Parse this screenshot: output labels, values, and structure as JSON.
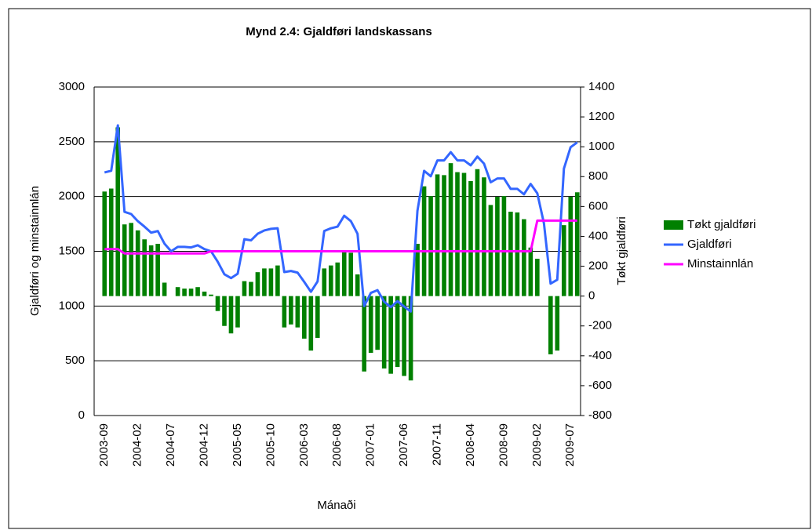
{
  "chart_data": {
    "type": "bar",
    "title": "Mynd 2.4: Gjaldføri landskassans",
    "x_label": "Mánaði",
    "y_label": "Gjaldføri og minstainnlán",
    "y2_label": "Tøkt gjaldføri",
    "categories": [
      "2003-09",
      null,
      null,
      null,
      null,
      "2004-02",
      null,
      null,
      null,
      null,
      "2004-07",
      null,
      null,
      null,
      null,
      "2004-12",
      null,
      null,
      null,
      null,
      "2005-05",
      null,
      null,
      null,
      null,
      "2005-10",
      null,
      null,
      null,
      null,
      "2006-03",
      null,
      null,
      null,
      null,
      "2006-08",
      null,
      null,
      null,
      null,
      "2007-01",
      null,
      null,
      null,
      null,
      "2007-06",
      null,
      null,
      null,
      null,
      "2007-11",
      null,
      null,
      null,
      null,
      "2008-04",
      null,
      null,
      null,
      null,
      "2008-09",
      null,
      null,
      null,
      null,
      "2009-02",
      null,
      null,
      null,
      null,
      "2009-07",
      null
    ],
    "ylim": [
      0,
      3000
    ],
    "yticks": [
      0,
      500,
      1000,
      1500,
      2000,
      2500,
      3000
    ],
    "y2lim": [
      -800,
      1400
    ],
    "y2ticks": [
      -800,
      -600,
      -400,
      -200,
      0,
      200,
      400,
      600,
      800,
      1000,
      1200,
      1400
    ],
    "grid": true,
    "legend": "right",
    "series": [
      {
        "name": "Tøkt gjaldføri",
        "type": "bar",
        "axis": "y2",
        "color": "#008000",
        "values": [
          700,
          720,
          1130,
          480,
          490,
          440,
          380,
          340,
          350,
          90,
          0,
          60,
          50,
          50,
          60,
          30,
          10,
          -100,
          -200,
          -250,
          -210,
          100,
          95,
          160,
          185,
          185,
          205,
          -210,
          -190,
          -210,
          -285,
          -365,
          -280,
          185,
          205,
          225,
          305,
          290,
          145,
          -505,
          -380,
          -360,
          -485,
          -520,
          -475,
          -535,
          -565,
          350,
          735,
          670,
          815,
          810,
          890,
          830,
          825,
          770,
          850,
          795,
          610,
          665,
          670,
          565,
          560,
          515,
          325,
          250,
          0,
          -390,
          -365,
          475,
          665,
          695
        ]
      },
      {
        "name": "Gjaldføri",
        "type": "line",
        "color": "#3366ff",
        "values": [
          2220,
          2235,
          2650,
          1860,
          1840,
          1775,
          1725,
          1670,
          1685,
          1570,
          1500,
          1540,
          1540,
          1535,
          1555,
          1520,
          1500,
          1405,
          1290,
          1255,
          1295,
          1610,
          1600,
          1660,
          1690,
          1705,
          1710,
          1310,
          1320,
          1305,
          1220,
          1130,
          1225,
          1685,
          1710,
          1725,
          1825,
          1775,
          1660,
          1000,
          1120,
          1145,
          1040,
          990,
          1045,
          995,
          950,
          1870,
          2235,
          2185,
          2330,
          2330,
          2405,
          2330,
          2330,
          2285,
          2365,
          2300,
          2130,
          2165,
          2165,
          2070,
          2070,
          2020,
          2115,
          2030,
          1755,
          1205,
          1240,
          2255,
          2450,
          2495
        ]
      },
      {
        "name": "Minstainnlán",
        "type": "line",
        "color": "#ff00ff",
        "values": [
          1520,
          1520,
          1520,
          1480,
          1480,
          1480,
          1480,
          1480,
          1480,
          1480,
          1480,
          1480,
          1480,
          1480,
          1480,
          1480,
          1500,
          1500,
          1500,
          1500,
          1500,
          1500,
          1500,
          1500,
          1500,
          1500,
          1500,
          1500,
          1500,
          1500,
          1500,
          1500,
          1500,
          1500,
          1500,
          1500,
          1500,
          1500,
          1500,
          1500,
          1500,
          1500,
          1500,
          1500,
          1500,
          1500,
          1500,
          1500,
          1500,
          1500,
          1500,
          1500,
          1500,
          1500,
          1500,
          1500,
          1500,
          1500,
          1500,
          1500,
          1500,
          1500,
          1500,
          1500,
          1500,
          1780,
          1780,
          1780,
          1780,
          1780,
          1780,
          1780
        ]
      }
    ]
  }
}
